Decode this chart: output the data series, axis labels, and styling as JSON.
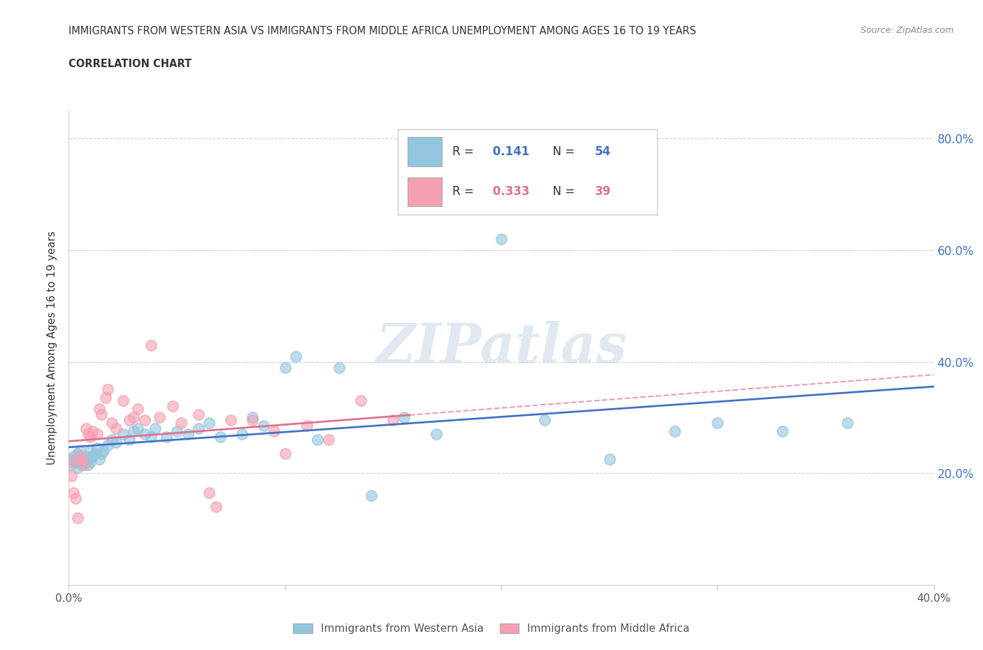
{
  "title_line1": "IMMIGRANTS FROM WESTERN ASIA VS IMMIGRANTS FROM MIDDLE AFRICA UNEMPLOYMENT AMONG AGES 16 TO 19 YEARS",
  "title_line2": "CORRELATION CHART",
  "source_text": "Source: ZipAtlas.com",
  "ylabel": "Unemployment Among Ages 16 to 19 years",
  "xlim": [
    0.0,
    0.4
  ],
  "ylim": [
    0.0,
    0.85
  ],
  "xtick_vals": [
    0.0,
    0.1,
    0.2,
    0.3,
    0.4
  ],
  "ytick_vals": [
    0.0,
    0.2,
    0.4,
    0.6,
    0.8
  ],
  "color_western": "#92C5DE",
  "color_middle": "#F4A0B0",
  "color_line_western": "#4472C4",
  "color_line_middle": "#E07090",
  "R_western": 0.141,
  "N_western": 54,
  "R_middle": 0.333,
  "N_middle": 39,
  "western_asia_x": [
    0.001,
    0.001,
    0.002,
    0.003,
    0.004,
    0.004,
    0.005,
    0.006,
    0.006,
    0.007,
    0.008,
    0.009,
    0.009,
    0.01,
    0.01,
    0.011,
    0.012,
    0.013,
    0.014,
    0.015,
    0.016,
    0.018,
    0.02,
    0.022,
    0.025,
    0.028,
    0.03,
    0.032,
    0.035,
    0.038,
    0.04,
    0.045,
    0.05,
    0.055,
    0.06,
    0.065,
    0.07,
    0.08,
    0.085,
    0.09,
    0.1,
    0.105,
    0.115,
    0.125,
    0.14,
    0.155,
    0.17,
    0.2,
    0.22,
    0.25,
    0.28,
    0.3,
    0.33,
    0.36
  ],
  "western_asia_y": [
    0.225,
    0.215,
    0.23,
    0.22,
    0.235,
    0.21,
    0.24,
    0.225,
    0.215,
    0.22,
    0.23,
    0.225,
    0.215,
    0.24,
    0.22,
    0.23,
    0.235,
    0.245,
    0.225,
    0.235,
    0.24,
    0.25,
    0.26,
    0.255,
    0.27,
    0.26,
    0.275,
    0.28,
    0.27,
    0.265,
    0.28,
    0.265,
    0.275,
    0.27,
    0.28,
    0.29,
    0.265,
    0.27,
    0.3,
    0.285,
    0.39,
    0.41,
    0.26,
    0.39,
    0.16,
    0.3,
    0.27,
    0.62,
    0.295,
    0.225,
    0.275,
    0.29,
    0.275,
    0.29
  ],
  "middle_africa_x": [
    0.001,
    0.001,
    0.002,
    0.003,
    0.004,
    0.005,
    0.006,
    0.007,
    0.008,
    0.009,
    0.01,
    0.011,
    0.013,
    0.014,
    0.015,
    0.017,
    0.018,
    0.02,
    0.022,
    0.025,
    0.028,
    0.03,
    0.032,
    0.035,
    0.038,
    0.042,
    0.048,
    0.052,
    0.06,
    0.065,
    0.068,
    0.075,
    0.085,
    0.095,
    0.1,
    0.11,
    0.12,
    0.135,
    0.15
  ],
  "middle_africa_y": [
    0.22,
    0.195,
    0.165,
    0.155,
    0.12,
    0.23,
    0.225,
    0.215,
    0.28,
    0.27,
    0.265,
    0.275,
    0.27,
    0.315,
    0.305,
    0.335,
    0.35,
    0.29,
    0.28,
    0.33,
    0.295,
    0.3,
    0.315,
    0.295,
    0.43,
    0.3,
    0.32,
    0.29,
    0.305,
    0.165,
    0.14,
    0.295,
    0.295,
    0.275,
    0.235,
    0.285,
    0.26,
    0.33,
    0.295
  ],
  "watermark_text": "ZIPatlas",
  "background_color": "#FFFFFF",
  "grid_color": "#CCCCCC",
  "legend_r_color_western": "#4472C4",
  "legend_n_color_western": "#4472C4",
  "legend_r_color_middle": "#E07090",
  "legend_n_color_middle": "#E07090"
}
